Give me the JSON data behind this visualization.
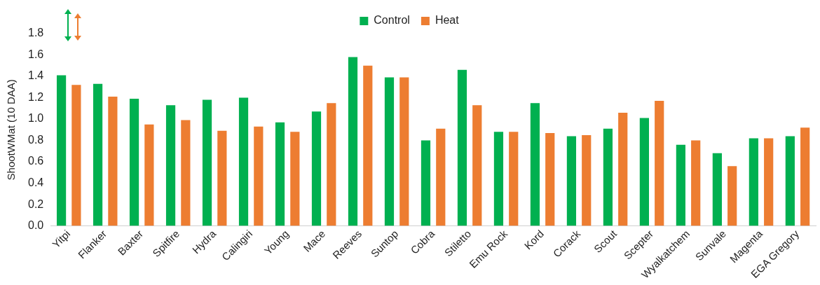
{
  "chart_data": {
    "type": "bar",
    "ylabel": "ShootWMat (10 DAA)",
    "categories": [
      "Yitpi",
      "Flanker",
      "Baxter",
      "Spitfire",
      "Hydra",
      "Calingiri",
      "Young",
      "Mace",
      "Reeves",
      "Suntop",
      "Cobra",
      "Stiletto",
      "Emu Rock",
      "Kord",
      "Corack",
      "Scout",
      "Scepter",
      "Wyalkatchem",
      "Sunvale",
      "Magenta",
      "EGA Gregory"
    ],
    "series": [
      {
        "name": "Control",
        "color": "#00b050",
        "values": [
          1.41,
          1.33,
          1.19,
          1.13,
          1.18,
          1.2,
          0.97,
          1.07,
          1.58,
          1.39,
          0.8,
          1.46,
          0.88,
          1.15,
          0.84,
          0.91,
          1.01,
          0.76,
          0.68,
          0.82,
          0.84
        ]
      },
      {
        "name": "Heat",
        "color": "#ed7d31",
        "values": [
          1.32,
          1.21,
          0.95,
          0.99,
          0.89,
          0.93,
          0.88,
          1.15,
          1.5,
          1.39,
          0.91,
          1.13,
          0.88,
          0.87,
          0.85,
          1.06,
          1.17,
          0.8,
          0.56,
          0.82,
          0.92
        ]
      }
    ],
    "ylim": [
      0,
      1.8
    ],
    "yticks": [
      {
        "value": 0,
        "label": "0.0"
      },
      0.2,
      0.4,
      0.6,
      0.8,
      {
        "value": 1,
        "label": "1.0"
      },
      1.2,
      1.4,
      1.6,
      1.8
    ],
    "grid": false,
    "legend": "top"
  }
}
